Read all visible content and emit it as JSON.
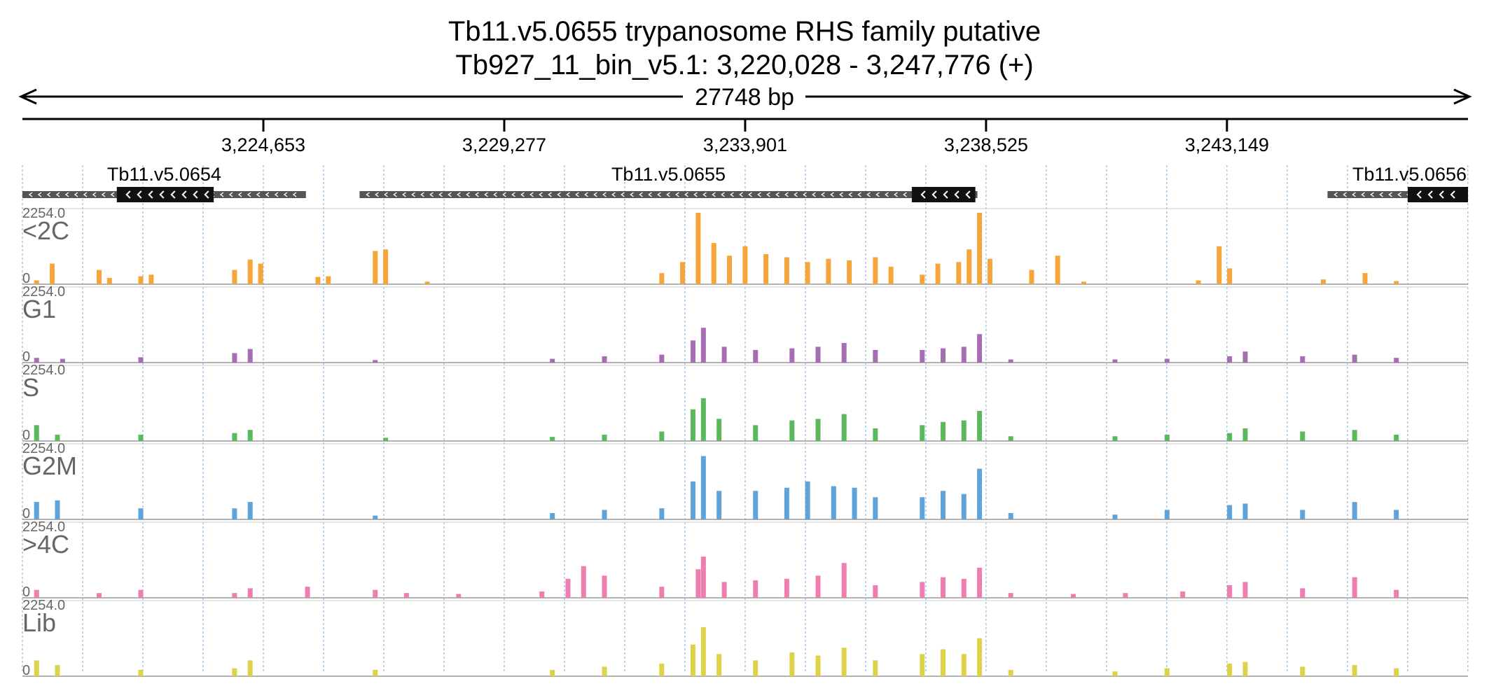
{
  "header": {
    "title_line1": "Tb11.v5.0655  trypanosome RHS family  putative",
    "title_line2": "Tb927_11_bin_v5.1: 3,220,028 - 3,247,776 (+)",
    "span_label": "27748 bp"
  },
  "colors": {
    "axis": "#000000",
    "gene_intron": "#555555",
    "gene_exon": "#111111",
    "grid": "#9ec3e6",
    "track_label": "#666666",
    "track_base": "#999999"
  },
  "chart_data": {
    "type": "area",
    "xlim": [
      3220028,
      3247776
    ],
    "xticks": [
      3224653,
      3229277,
      3233901,
      3238525,
      3243149
    ],
    "xtick_labels": [
      "3,224,653",
      "3,229,277",
      "3,233,901",
      "3,238,525",
      "3,243,149"
    ],
    "ylim": [
      0,
      2254.0
    ],
    "ymax_label": "2254.0",
    "ymin_label": "0",
    "genes": [
      {
        "name": "Tb11.v5.0654",
        "start": 3220028,
        "end": 3225470,
        "utr5_start": 3221840,
        "utr5_end": 3223700
      },
      {
        "name": "Tb11.v5.0655",
        "start": 3226500,
        "end": 3238360,
        "utr5_start": 3237100,
        "utr5_end": 3238320
      },
      {
        "name": "Tb11.v5.0656",
        "start": 3245080,
        "end": 3247776,
        "utr5_start": 3246620,
        "utr5_end": 3247776
      }
    ],
    "series": [
      {
        "name": "<2C",
        "color": "#f5a53c",
        "values": [
          {
            "x": 3220300,
            "y": 120
          },
          {
            "x": 3220600,
            "y": 650
          },
          {
            "x": 3221500,
            "y": 450
          },
          {
            "x": 3221700,
            "y": 200
          },
          {
            "x": 3222300,
            "y": 250
          },
          {
            "x": 3222500,
            "y": 300
          },
          {
            "x": 3224100,
            "y": 450
          },
          {
            "x": 3224400,
            "y": 780
          },
          {
            "x": 3224600,
            "y": 650
          },
          {
            "x": 3225700,
            "y": 230
          },
          {
            "x": 3225900,
            "y": 250
          },
          {
            "x": 3226800,
            "y": 1050
          },
          {
            "x": 3227000,
            "y": 1100
          },
          {
            "x": 3227800,
            "y": 80
          },
          {
            "x": 3232300,
            "y": 350
          },
          {
            "x": 3232700,
            "y": 700
          },
          {
            "x": 3233000,
            "y": 2254
          },
          {
            "x": 3233300,
            "y": 1300
          },
          {
            "x": 3233600,
            "y": 900
          },
          {
            "x": 3233900,
            "y": 1200
          },
          {
            "x": 3234300,
            "y": 950
          },
          {
            "x": 3234700,
            "y": 850
          },
          {
            "x": 3235100,
            "y": 700
          },
          {
            "x": 3235500,
            "y": 800
          },
          {
            "x": 3235900,
            "y": 750
          },
          {
            "x": 3236400,
            "y": 850
          },
          {
            "x": 3236700,
            "y": 550
          },
          {
            "x": 3237300,
            "y": 300
          },
          {
            "x": 3237600,
            "y": 650
          },
          {
            "x": 3238000,
            "y": 700
          },
          {
            "x": 3238200,
            "y": 1100
          },
          {
            "x": 3238400,
            "y": 2254
          },
          {
            "x": 3238600,
            "y": 800
          },
          {
            "x": 3239400,
            "y": 450
          },
          {
            "x": 3239900,
            "y": 900
          },
          {
            "x": 3240400,
            "y": 80
          },
          {
            "x": 3242600,
            "y": 120
          },
          {
            "x": 3243000,
            "y": 1200
          },
          {
            "x": 3243200,
            "y": 500
          },
          {
            "x": 3245000,
            "y": 150
          },
          {
            "x": 3245800,
            "y": 350
          },
          {
            "x": 3246400,
            "y": 100
          }
        ]
      },
      {
        "name": "G1",
        "color": "#a66db3",
        "values": [
          {
            "x": 3220300,
            "y": 150
          },
          {
            "x": 3220800,
            "y": 120
          },
          {
            "x": 3222300,
            "y": 170
          },
          {
            "x": 3224100,
            "y": 300
          },
          {
            "x": 3224400,
            "y": 430
          },
          {
            "x": 3226800,
            "y": 80
          },
          {
            "x": 3230200,
            "y": 120
          },
          {
            "x": 3231200,
            "y": 200
          },
          {
            "x": 3232300,
            "y": 250
          },
          {
            "x": 3232900,
            "y": 700
          },
          {
            "x": 3233100,
            "y": 1100
          },
          {
            "x": 3233500,
            "y": 500
          },
          {
            "x": 3234100,
            "y": 400
          },
          {
            "x": 3234800,
            "y": 450
          },
          {
            "x": 3235300,
            "y": 500
          },
          {
            "x": 3235800,
            "y": 620
          },
          {
            "x": 3236400,
            "y": 400
          },
          {
            "x": 3237300,
            "y": 400
          },
          {
            "x": 3237700,
            "y": 450
          },
          {
            "x": 3238100,
            "y": 500
          },
          {
            "x": 3238400,
            "y": 900
          },
          {
            "x": 3239000,
            "y": 100
          },
          {
            "x": 3241000,
            "y": 100
          },
          {
            "x": 3242000,
            "y": 120
          },
          {
            "x": 3243200,
            "y": 200
          },
          {
            "x": 3243500,
            "y": 350
          },
          {
            "x": 3244600,
            "y": 200
          },
          {
            "x": 3245600,
            "y": 250
          },
          {
            "x": 3246400,
            "y": 150
          }
        ]
      },
      {
        "name": "S",
        "color": "#5cb85c",
        "values": [
          {
            "x": 3220300,
            "y": 500
          },
          {
            "x": 3220700,
            "y": 200
          },
          {
            "x": 3222300,
            "y": 200
          },
          {
            "x": 3224100,
            "y": 250
          },
          {
            "x": 3224400,
            "y": 350
          },
          {
            "x": 3227000,
            "y": 100
          },
          {
            "x": 3230200,
            "y": 130
          },
          {
            "x": 3231200,
            "y": 200
          },
          {
            "x": 3232300,
            "y": 300
          },
          {
            "x": 3232900,
            "y": 1000
          },
          {
            "x": 3233100,
            "y": 1350
          },
          {
            "x": 3233400,
            "y": 700
          },
          {
            "x": 3234100,
            "y": 500
          },
          {
            "x": 3234800,
            "y": 650
          },
          {
            "x": 3235300,
            "y": 700
          },
          {
            "x": 3235800,
            "y": 850
          },
          {
            "x": 3236400,
            "y": 400
          },
          {
            "x": 3237300,
            "y": 500
          },
          {
            "x": 3237700,
            "y": 600
          },
          {
            "x": 3238100,
            "y": 650
          },
          {
            "x": 3238400,
            "y": 950
          },
          {
            "x": 3239000,
            "y": 150
          },
          {
            "x": 3241000,
            "y": 150
          },
          {
            "x": 3242000,
            "y": 200
          },
          {
            "x": 3243200,
            "y": 250
          },
          {
            "x": 3243500,
            "y": 400
          },
          {
            "x": 3244600,
            "y": 300
          },
          {
            "x": 3245600,
            "y": 350
          },
          {
            "x": 3246400,
            "y": 200
          }
        ]
      },
      {
        "name": "G2M",
        "color": "#5fa3d8",
        "values": [
          {
            "x": 3220300,
            "y": 550
          },
          {
            "x": 3220700,
            "y": 600
          },
          {
            "x": 3222300,
            "y": 350
          },
          {
            "x": 3224100,
            "y": 350
          },
          {
            "x": 3224400,
            "y": 550
          },
          {
            "x": 3226800,
            "y": 120
          },
          {
            "x": 3230200,
            "y": 200
          },
          {
            "x": 3231200,
            "y": 300
          },
          {
            "x": 3232300,
            "y": 350
          },
          {
            "x": 3232900,
            "y": 1200
          },
          {
            "x": 3233100,
            "y": 2000
          },
          {
            "x": 3233400,
            "y": 900
          },
          {
            "x": 3234100,
            "y": 900
          },
          {
            "x": 3234700,
            "y": 1000
          },
          {
            "x": 3235100,
            "y": 1200
          },
          {
            "x": 3235600,
            "y": 1050
          },
          {
            "x": 3236000,
            "y": 1000
          },
          {
            "x": 3236400,
            "y": 700
          },
          {
            "x": 3237300,
            "y": 700
          },
          {
            "x": 3237700,
            "y": 900
          },
          {
            "x": 3238100,
            "y": 800
          },
          {
            "x": 3238400,
            "y": 1600
          },
          {
            "x": 3239000,
            "y": 200
          },
          {
            "x": 3241000,
            "y": 150
          },
          {
            "x": 3242000,
            "y": 300
          },
          {
            "x": 3243200,
            "y": 450
          },
          {
            "x": 3243500,
            "y": 500
          },
          {
            "x": 3244600,
            "y": 300
          },
          {
            "x": 3245600,
            "y": 550
          },
          {
            "x": 3246400,
            "y": 300
          }
        ]
      },
      {
        "name": ">4C",
        "color": "#ee7db1",
        "values": [
          {
            "x": 3220300,
            "y": 250
          },
          {
            "x": 3221500,
            "y": 150
          },
          {
            "x": 3222300,
            "y": 250
          },
          {
            "x": 3224100,
            "y": 150
          },
          {
            "x": 3224400,
            "y": 300
          },
          {
            "x": 3225500,
            "y": 350
          },
          {
            "x": 3226800,
            "y": 250
          },
          {
            "x": 3227400,
            "y": 150
          },
          {
            "x": 3228400,
            "y": 120
          },
          {
            "x": 3230000,
            "y": 200
          },
          {
            "x": 3230500,
            "y": 600
          },
          {
            "x": 3230800,
            "y": 1000
          },
          {
            "x": 3231200,
            "y": 700
          },
          {
            "x": 3232300,
            "y": 350
          },
          {
            "x": 3233000,
            "y": 900
          },
          {
            "x": 3233100,
            "y": 1300
          },
          {
            "x": 3233500,
            "y": 500
          },
          {
            "x": 3234100,
            "y": 550
          },
          {
            "x": 3234700,
            "y": 600
          },
          {
            "x": 3235300,
            "y": 700
          },
          {
            "x": 3235800,
            "y": 1100
          },
          {
            "x": 3236400,
            "y": 400
          },
          {
            "x": 3237300,
            "y": 500
          },
          {
            "x": 3237700,
            "y": 650
          },
          {
            "x": 3238100,
            "y": 600
          },
          {
            "x": 3238400,
            "y": 950
          },
          {
            "x": 3239000,
            "y": 150
          },
          {
            "x": 3240200,
            "y": 120
          },
          {
            "x": 3241200,
            "y": 150
          },
          {
            "x": 3242300,
            "y": 200
          },
          {
            "x": 3243200,
            "y": 400
          },
          {
            "x": 3243500,
            "y": 500
          },
          {
            "x": 3244600,
            "y": 300
          },
          {
            "x": 3245600,
            "y": 650
          },
          {
            "x": 3246400,
            "y": 250
          }
        ]
      },
      {
        "name": "Lib",
        "color": "#ddd34a",
        "values": [
          {
            "x": 3220300,
            "y": 500
          },
          {
            "x": 3220700,
            "y": 350
          },
          {
            "x": 3222300,
            "y": 200
          },
          {
            "x": 3224100,
            "y": 250
          },
          {
            "x": 3224400,
            "y": 500
          },
          {
            "x": 3226800,
            "y": 200
          },
          {
            "x": 3230200,
            "y": 200
          },
          {
            "x": 3231200,
            "y": 300
          },
          {
            "x": 3232300,
            "y": 400
          },
          {
            "x": 3232900,
            "y": 1000
          },
          {
            "x": 3233100,
            "y": 1550
          },
          {
            "x": 3233400,
            "y": 700
          },
          {
            "x": 3234100,
            "y": 500
          },
          {
            "x": 3234800,
            "y": 750
          },
          {
            "x": 3235300,
            "y": 650
          },
          {
            "x": 3235800,
            "y": 900
          },
          {
            "x": 3236400,
            "y": 500
          },
          {
            "x": 3237300,
            "y": 700
          },
          {
            "x": 3237700,
            "y": 850
          },
          {
            "x": 3238100,
            "y": 700
          },
          {
            "x": 3238400,
            "y": 1200
          },
          {
            "x": 3239000,
            "y": 200
          },
          {
            "x": 3241000,
            "y": 150
          },
          {
            "x": 3242000,
            "y": 250
          },
          {
            "x": 3243200,
            "y": 400
          },
          {
            "x": 3243500,
            "y": 450
          },
          {
            "x": 3244600,
            "y": 300
          },
          {
            "x": 3245600,
            "y": 350
          },
          {
            "x": 3246400,
            "y": 250
          }
        ]
      }
    ]
  }
}
